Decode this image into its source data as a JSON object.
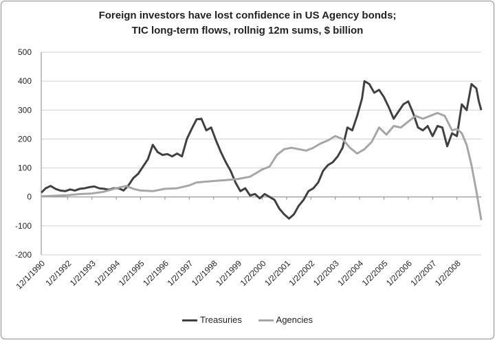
{
  "chart_data": {
    "type": "line",
    "title_lines": [
      "Foreign investors have lost confidence in US Agency bonds;",
      "TIC long-term flows, rollnig 12m sums, $ billion"
    ],
    "xlabel": "",
    "ylabel": "",
    "ylim": [
      -200,
      500
    ],
    "yticks": [
      -200,
      -100,
      0,
      100,
      200,
      300,
      400,
      500
    ],
    "xlim": [
      1990.917,
      2009.0
    ],
    "xtick_labels": [
      "12/1/1990",
      "1/2/1992",
      "1/2/1993",
      "1/2/1994",
      "1/2/1995",
      "1/2/1996",
      "1/2/1997",
      "1/2/1998",
      "1/2/1999",
      "1/2/2000",
      "1/2/2001",
      "1/2/2002",
      "1/2/2003",
      "1/2/2004",
      "1/2/2005",
      "1/2/2006",
      "1/2/2007",
      "1/2/2008"
    ],
    "xtick_values": [
      1990.917,
      1992.0,
      1993.0,
      1994.0,
      1995.0,
      1996.0,
      1997.0,
      1998.0,
      1999.0,
      2000.0,
      2001.0,
      2002.0,
      2003.0,
      2004.0,
      2005.0,
      2006.0,
      2007.0,
      2008.0
    ],
    "grid": "horizontal",
    "legend_position": "bottom",
    "series": [
      {
        "name": "Treasuries",
        "color": "#404040",
        "points": [
          [
            1990.92,
            15
          ],
          [
            1991.1,
            30
          ],
          [
            1991.3,
            38
          ],
          [
            1991.5,
            28
          ],
          [
            1991.7,
            22
          ],
          [
            1991.9,
            20
          ],
          [
            1992.1,
            26
          ],
          [
            1992.3,
            22
          ],
          [
            1992.5,
            28
          ],
          [
            1992.7,
            30
          ],
          [
            1992.9,
            34
          ],
          [
            1993.1,
            36
          ],
          [
            1993.3,
            30
          ],
          [
            1993.5,
            28
          ],
          [
            1993.7,
            25
          ],
          [
            1993.9,
            30
          ],
          [
            1994.1,
            30
          ],
          [
            1994.3,
            22
          ],
          [
            1994.5,
            40
          ],
          [
            1994.7,
            65
          ],
          [
            1994.9,
            80
          ],
          [
            1995.1,
            105
          ],
          [
            1995.3,
            130
          ],
          [
            1995.5,
            180
          ],
          [
            1995.7,
            155
          ],
          [
            1995.9,
            145
          ],
          [
            1996.1,
            148
          ],
          [
            1996.3,
            140
          ],
          [
            1996.5,
            150
          ],
          [
            1996.7,
            140
          ],
          [
            1996.9,
            200
          ],
          [
            1997.1,
            235
          ],
          [
            1997.3,
            268
          ],
          [
            1997.5,
            270
          ],
          [
            1997.7,
            230
          ],
          [
            1997.9,
            240
          ],
          [
            1998.1,
            195
          ],
          [
            1998.3,
            155
          ],
          [
            1998.5,
            120
          ],
          [
            1998.7,
            90
          ],
          [
            1998.9,
            50
          ],
          [
            1999.1,
            20
          ],
          [
            1999.3,
            30
          ],
          [
            1999.5,
            5
          ],
          [
            1999.7,
            10
          ],
          [
            1999.9,
            -5
          ],
          [
            2000.1,
            10
          ],
          [
            2000.3,
            0
          ],
          [
            2000.5,
            -10
          ],
          [
            2000.7,
            -40
          ],
          [
            2000.9,
            -60
          ],
          [
            2001.1,
            -75
          ],
          [
            2001.3,
            -60
          ],
          [
            2001.5,
            -30
          ],
          [
            2001.7,
            -10
          ],
          [
            2001.9,
            20
          ],
          [
            2002.1,
            30
          ],
          [
            2002.3,
            50
          ],
          [
            2002.5,
            90
          ],
          [
            2002.7,
            110
          ],
          [
            2002.9,
            120
          ],
          [
            2003.1,
            140
          ],
          [
            2003.3,
            170
          ],
          [
            2003.5,
            240
          ],
          [
            2003.7,
            230
          ],
          [
            2003.9,
            280
          ],
          [
            2004.1,
            340
          ],
          [
            2004.2,
            400
          ],
          [
            2004.4,
            390
          ],
          [
            2004.6,
            360
          ],
          [
            2004.8,
            370
          ],
          [
            2005.0,
            345
          ],
          [
            2005.2,
            310
          ],
          [
            2005.4,
            270
          ],
          [
            2005.6,
            295
          ],
          [
            2005.8,
            320
          ],
          [
            2006.0,
            330
          ],
          [
            2006.2,
            290
          ],
          [
            2006.4,
            240
          ],
          [
            2006.6,
            230
          ],
          [
            2006.8,
            245
          ],
          [
            2007.0,
            210
          ],
          [
            2007.2,
            245
          ],
          [
            2007.4,
            240
          ],
          [
            2007.6,
            175
          ],
          [
            2007.8,
            220
          ],
          [
            2008.0,
            210
          ],
          [
            2008.2,
            320
          ],
          [
            2008.4,
            300
          ],
          [
            2008.6,
            390
          ],
          [
            2008.8,
            375
          ],
          [
            2008.9,
            330
          ],
          [
            2009.0,
            300
          ]
        ]
      },
      {
        "name": "Agencies",
        "color": "#a6a6a6",
        "points": [
          [
            1990.92,
            2
          ],
          [
            1991.5,
            4
          ],
          [
            1992.0,
            6
          ],
          [
            1992.5,
            10
          ],
          [
            1993.0,
            12
          ],
          [
            1993.5,
            18
          ],
          [
            1994.0,
            30
          ],
          [
            1994.4,
            38
          ],
          [
            1994.7,
            28
          ],
          [
            1995.0,
            22
          ],
          [
            1995.5,
            20
          ],
          [
            1996.0,
            28
          ],
          [
            1996.5,
            30
          ],
          [
            1997.0,
            40
          ],
          [
            1997.3,
            50
          ],
          [
            1997.6,
            52
          ],
          [
            1998.0,
            55
          ],
          [
            1998.5,
            58
          ],
          [
            1999.0,
            62
          ],
          [
            1999.5,
            70
          ],
          [
            1999.8,
            85
          ],
          [
            2000.0,
            95
          ],
          [
            2000.3,
            105
          ],
          [
            2000.6,
            145
          ],
          [
            2000.9,
            165
          ],
          [
            2001.2,
            170
          ],
          [
            2001.5,
            165
          ],
          [
            2001.8,
            160
          ],
          [
            2002.1,
            170
          ],
          [
            2002.4,
            185
          ],
          [
            2002.7,
            195
          ],
          [
            2003.0,
            210
          ],
          [
            2003.3,
            200
          ],
          [
            2003.6,
            170
          ],
          [
            2003.9,
            150
          ],
          [
            2004.2,
            165
          ],
          [
            2004.5,
            190
          ],
          [
            2004.8,
            240
          ],
          [
            2005.1,
            215
          ],
          [
            2005.4,
            245
          ],
          [
            2005.7,
            240
          ],
          [
            2006.0,
            260
          ],
          [
            2006.3,
            280
          ],
          [
            2006.6,
            270
          ],
          [
            2006.9,
            280
          ],
          [
            2007.2,
            290
          ],
          [
            2007.5,
            280
          ],
          [
            2007.8,
            230
          ],
          [
            2008.0,
            235
          ],
          [
            2008.2,
            220
          ],
          [
            2008.4,
            180
          ],
          [
            2008.6,
            110
          ],
          [
            2008.8,
            20
          ],
          [
            2009.0,
            -80
          ]
        ]
      }
    ]
  }
}
